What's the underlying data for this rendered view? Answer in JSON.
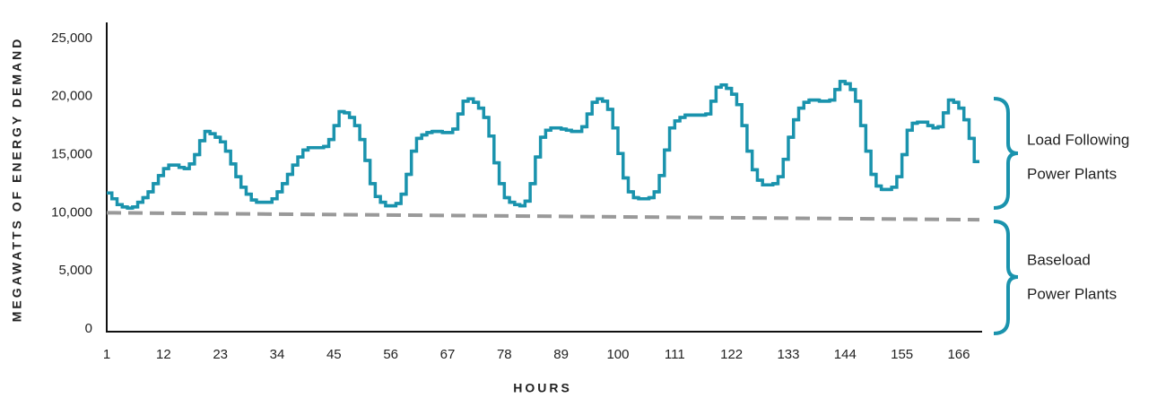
{
  "chart_data": {
    "type": "step-line",
    "x_label": "HOURS",
    "y_label": "MEGAWATTS OF ENERGY DEMAND",
    "xlim": [
      1,
      170
    ],
    "xticks": [
      1,
      12,
      23,
      34,
      45,
      56,
      67,
      78,
      89,
      100,
      111,
      122,
      133,
      144,
      155,
      166
    ],
    "ylim": [
      0,
      26300
    ],
    "yticks": [
      0,
      {
        "value": 5000,
        "label": "5,000"
      },
      {
        "value": 10000,
        "label": "10,000"
      },
      {
        "value": 15000,
        "label": "15,000"
      },
      {
        "value": 20000,
        "label": "20,000"
      },
      {
        "value": 25000,
        "label": "25,000"
      }
    ],
    "series": [
      {
        "color": "#1a93ad",
        "style": "step",
        "x": [
          1,
          2,
          3,
          4,
          5,
          6,
          7,
          8,
          9,
          10,
          11,
          12,
          13,
          14,
          15,
          16,
          17,
          18,
          19,
          20,
          21,
          22,
          23,
          24,
          25,
          26,
          27,
          28,
          29,
          30,
          31,
          32,
          33,
          34,
          35,
          36,
          37,
          38,
          39,
          40,
          41,
          42,
          43,
          44,
          45,
          46,
          47,
          48,
          49,
          50,
          51,
          52,
          53,
          54,
          55,
          56,
          57,
          58,
          59,
          60,
          61,
          62,
          63,
          64,
          65,
          66,
          67,
          68,
          69,
          70,
          71,
          72,
          73,
          74,
          75,
          76,
          77,
          78,
          79,
          80,
          81,
          82,
          83,
          84,
          85,
          86,
          87,
          88,
          89,
          90,
          91,
          92,
          93,
          94,
          95,
          96,
          97,
          98,
          99,
          100,
          101,
          102,
          103,
          104,
          105,
          106,
          107,
          108,
          109,
          110,
          111,
          112,
          113,
          114,
          115,
          116,
          117,
          118,
          119,
          120,
          121,
          122,
          123,
          124,
          125,
          126,
          127,
          128,
          129,
          130,
          131,
          132,
          133,
          134,
          135,
          136,
          137,
          138,
          139,
          140,
          141,
          142,
          143,
          144,
          145,
          146,
          147,
          148,
          149,
          150,
          151,
          152,
          153,
          154,
          155,
          156,
          157,
          158,
          159,
          160,
          161,
          162,
          163,
          164,
          165,
          166,
          167,
          168,
          169
        ],
        "values": [
          11700,
          11200,
          10700,
          10500,
          10400,
          10500,
          10900,
          11300,
          11800,
          12500,
          13200,
          13800,
          14100,
          14100,
          13900,
          13800,
          14200,
          15000,
          16200,
          17000,
          16800,
          16500,
          16100,
          15300,
          14200,
          13100,
          12200,
          11600,
          11100,
          10900,
          10900,
          10900,
          11200,
          11800,
          12500,
          13300,
          14100,
          14800,
          15400,
          15600,
          15600,
          15600,
          15700,
          16300,
          17500,
          18700,
          18600,
          18200,
          17500,
          16300,
          14500,
          12500,
          11400,
          10900,
          10600,
          10600,
          10800,
          11600,
          13300,
          15300,
          16400,
          16700,
          16900,
          17000,
          17000,
          16900,
          16900,
          17200,
          18500,
          19600,
          19800,
          19500,
          19000,
          18200,
          16600,
          14300,
          12500,
          11300,
          10900,
          10700,
          10600,
          11000,
          12500,
          14800,
          16500,
          17100,
          17300,
          17300,
          17200,
          17100,
          17000,
          17000,
          17400,
          18500,
          19500,
          19800,
          19600,
          18900,
          17300,
          15100,
          13000,
          11800,
          11300,
          11200,
          11200,
          11300,
          11800,
          13200,
          15400,
          17300,
          17900,
          18200,
          18400,
          18400,
          18400,
          18400,
          18500,
          19600,
          20800,
          21000,
          20700,
          20200,
          19300,
          17500,
          15300,
          13700,
          12800,
          12400,
          12400,
          12500,
          13100,
          14600,
          16500,
          18000,
          19000,
          19500,
          19700,
          19700,
          19600,
          19600,
          19700,
          20600,
          21300,
          21100,
          20600,
          19600,
          17500,
          15300,
          13300,
          12300,
          12000,
          12000,
          12200,
          13100,
          15000,
          17100,
          17700,
          17800,
          17800,
          17500,
          17300,
          17400,
          18600,
          19700,
          19500,
          19000,
          18000,
          16400,
          14400
        ]
      },
      {
        "color": "#999999",
        "style": "dashed",
        "x": [
          1,
          170
        ],
        "values": [
          10000,
          9400
        ]
      }
    ],
    "annotations": [
      {
        "lines": [
          "Load Following",
          "Power Plants"
        ]
      },
      {
        "lines": [
          "Baseload",
          "Power Plants"
        ]
      }
    ]
  }
}
